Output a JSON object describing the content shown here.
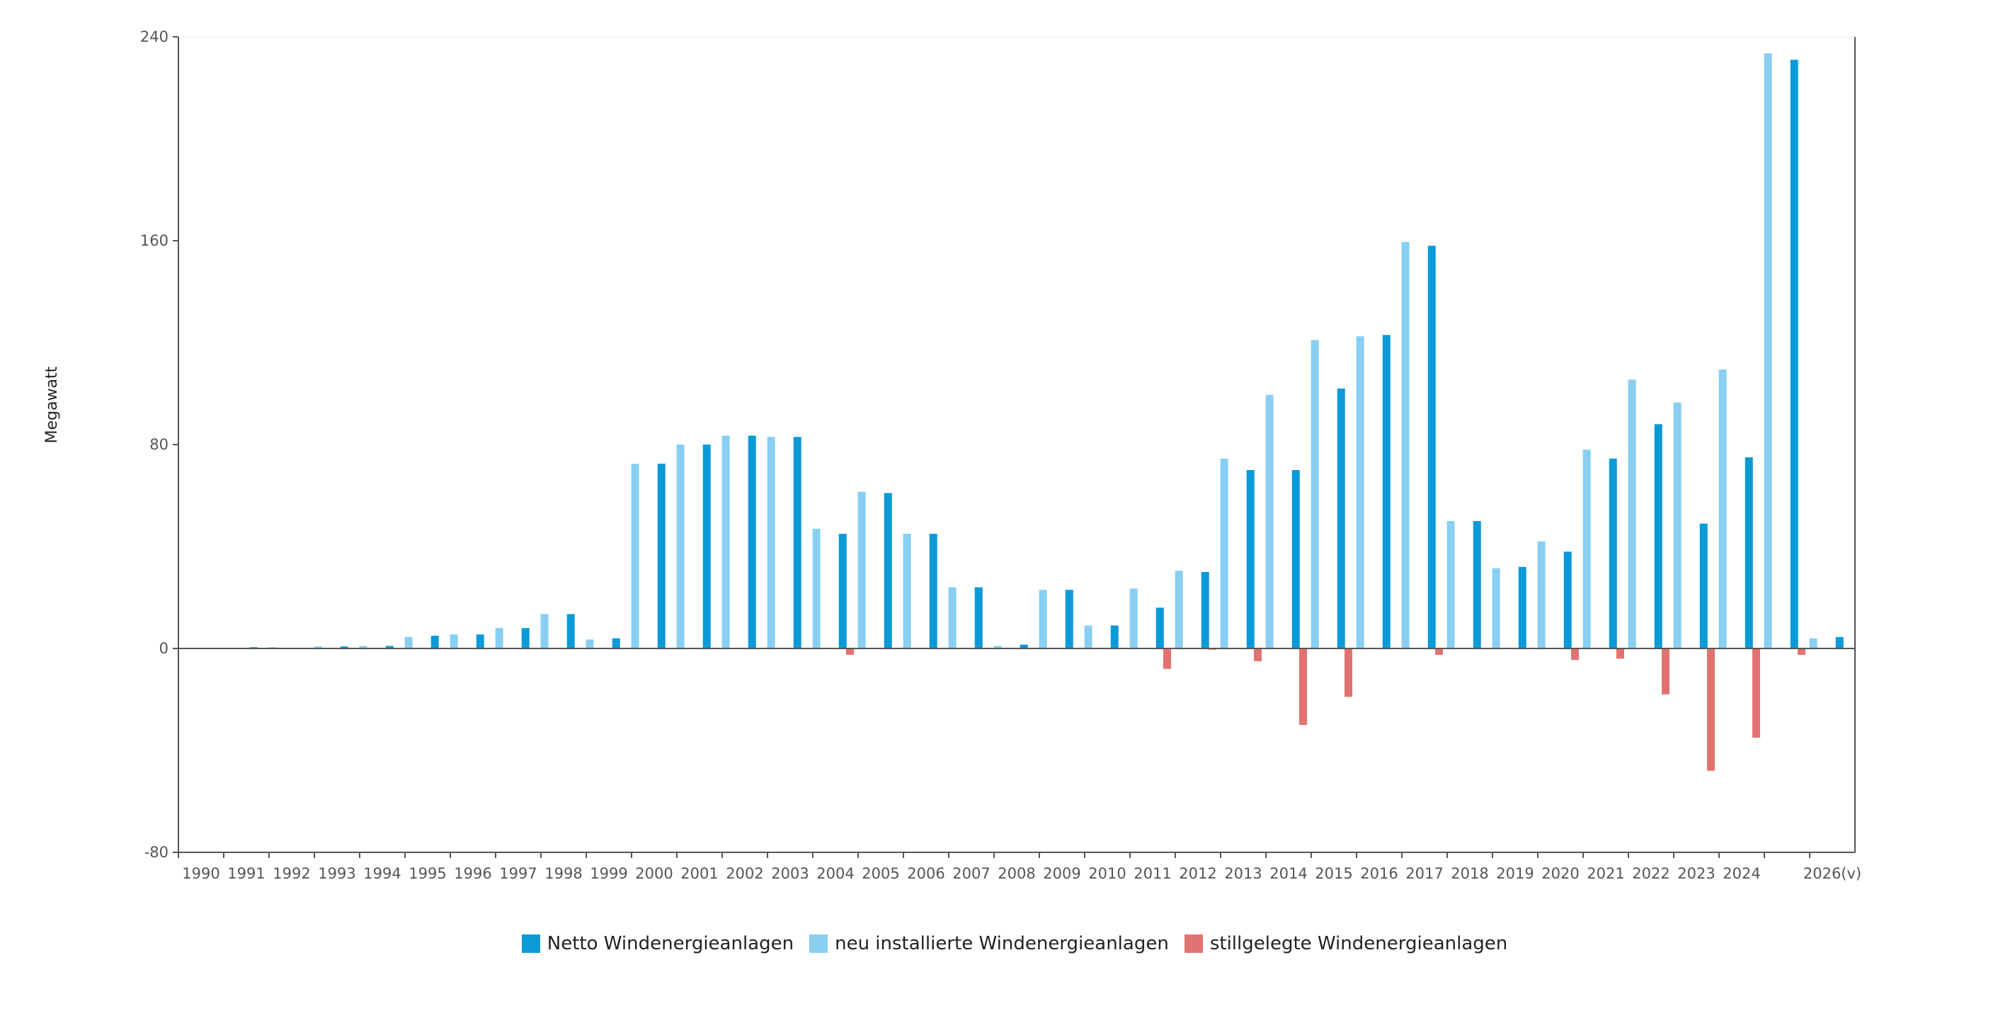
{
  "chart_data": {
    "type": "bar",
    "ylabel": "Megawatt",
    "ylim": [
      -80,
      240
    ],
    "yticks": [
      -80,
      0,
      80,
      160,
      240
    ],
    "x_labels": [
      "1990",
      "1991",
      "1992",
      "1993",
      "1994",
      "1995",
      "1996",
      "1997",
      "1998",
      "1999",
      "2000",
      "2001",
      "2002",
      "2003",
      "2004",
      "2005",
      "2006",
      "2007",
      "2008",
      "2009",
      "2010",
      "2011",
      "2012",
      "2013",
      "2014",
      "2015",
      "2016",
      "2017",
      "2018",
      "2019",
      "2020",
      "2021",
      "2022",
      "2023",
      "2024",
      "",
      "2026(v)"
    ],
    "series": [
      {
        "name": "Netto Windenergieanlagen",
        "color": "#0a9ad8",
        "values": [
          0.2,
          0.5,
          0,
          0.8,
          1,
          5,
          5.5,
          8,
          13.5,
          4,
          72.5,
          80,
          83.5,
          83,
          45,
          61,
          45,
          24,
          1.5,
          23,
          9,
          16,
          30,
          70,
          70,
          102,
          123,
          158,
          50,
          32,
          38,
          74.5,
          88,
          49,
          75,
          231,
          4.5
        ]
      },
      {
        "name": "neu installierte Windenergieanlagen",
        "color": "#88cff2",
        "values": [
          0.3,
          0,
          0.5,
          0.8,
          1,
          4.5,
          5.5,
          8,
          13.5,
          3.5,
          72.5,
          80,
          83.5,
          83,
          47,
          61.5,
          45,
          24,
          1,
          23,
          9,
          23.5,
          30.5,
          74.5,
          99.5,
          121,
          122.5,
          159.5,
          50,
          31.5,
          42,
          78,
          105.5,
          96.5,
          109.5,
          233.5,
          4
        ]
      },
      {
        "name": "stillgelegte Windenergieanlagen",
        "color": "#e27272",
        "values": [
          0,
          0,
          0,
          0,
          0,
          0,
          0,
          0,
          0,
          0,
          0,
          0,
          0,
          0,
          -2.5,
          0,
          0,
          0,
          0,
          0,
          0,
          -8,
          -0.5,
          -5,
          -30,
          -19,
          0,
          -2.5,
          0,
          0,
          -4.5,
          -4,
          -18,
          -48,
          -35,
          -2.5,
          0
        ]
      }
    ],
    "grid": false,
    "legend_position": "bottom-center"
  }
}
